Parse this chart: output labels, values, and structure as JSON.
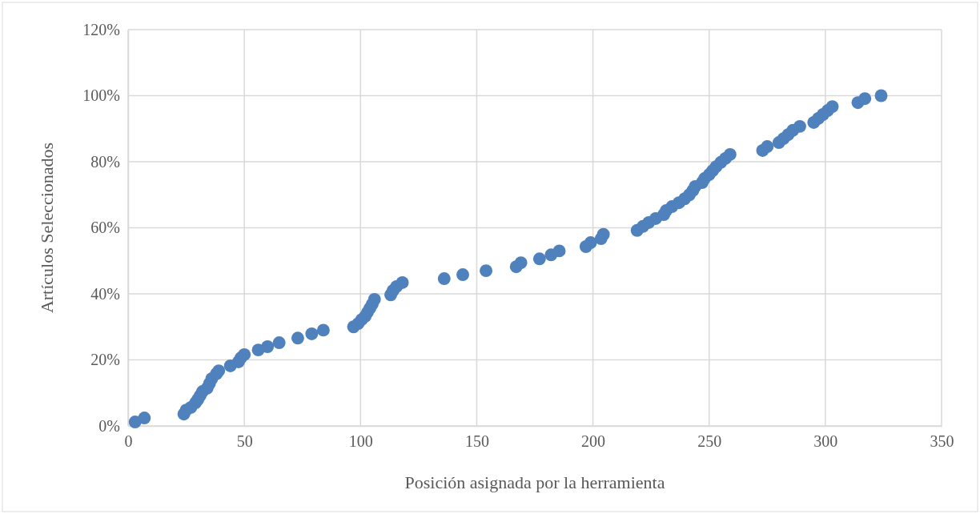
{
  "chart_data": {
    "type": "scatter",
    "xlabel": "Posición asignada por la herramienta",
    "ylabel": "Artículos Seleccionados",
    "x": [
      3,
      7,
      24,
      25,
      27,
      29,
      30,
      31,
      32,
      34,
      35,
      36,
      38,
      39,
      44,
      47.5,
      48.5,
      50,
      56,
      60,
      65,
      73,
      79,
      84,
      97,
      99,
      100.5,
      102,
      103,
      104,
      105,
      106,
      113,
      114,
      115.5,
      118,
      136,
      144,
      154,
      167,
      169,
      177,
      182,
      185.5,
      197,
      199,
      203.5,
      204.5,
      219,
      221.5,
      224,
      227,
      230.5,
      231.5,
      234,
      237,
      239.5,
      241.5,
      243,
      244,
      247,
      248,
      250,
      251.5,
      253,
      255,
      257,
      259,
      273,
      275,
      280,
      282,
      284,
      286,
      289,
      295,
      297,
      299,
      301,
      303,
      314,
      317,
      324
    ],
    "series": [
      {
        "color": "#4f81bd",
        "values": [
          1.2,
          2.4,
          3.6,
          4.8,
          5.6,
          7,
          8,
          9.2,
          10.4,
          11.4,
          12.8,
          14.3,
          15.8,
          16.7,
          18.2,
          19.4,
          20.6,
          21.6,
          23,
          24,
          25.2,
          26.6,
          27.9,
          29,
          30,
          31,
          32.2,
          33.2,
          34.4,
          35.6,
          36.8,
          38.3,
          39.7,
          41,
          42.2,
          43.4,
          44.6,
          45.8,
          47,
          48.2,
          49.4,
          50.6,
          51.8,
          53,
          54.3,
          55.5,
          56.7,
          58,
          59.2,
          60.4,
          61.6,
          62.8,
          64,
          65.2,
          66.4,
          67.6,
          68.8,
          70,
          71.3,
          72.5,
          73.7,
          74.9,
          76.1,
          77.3,
          78.5,
          79.8,
          81,
          82.2,
          83.4,
          84.6,
          85.8,
          87,
          88.2,
          89.5,
          90.7,
          91.9,
          93.1,
          94.3,
          95.5,
          96.7,
          97.9,
          99.1,
          100
        ]
      }
    ],
    "xlim": [
      0,
      350
    ],
    "xticks": [
      0,
      50,
      100,
      150,
      200,
      250,
      300,
      350
    ],
    "ylim": [
      0,
      120
    ],
    "yticks": [
      {
        "value": 0,
        "label": "0%"
      },
      {
        "value": 20,
        "label": "20%"
      },
      {
        "value": 40,
        "label": "40%"
      },
      {
        "value": 60,
        "label": "60%"
      },
      {
        "value": 80,
        "label": "80%"
      },
      {
        "value": 100,
        "label": "100%"
      },
      {
        "value": 120,
        "label": "120%"
      }
    ],
    "grid": true,
    "marker": "circle"
  }
}
